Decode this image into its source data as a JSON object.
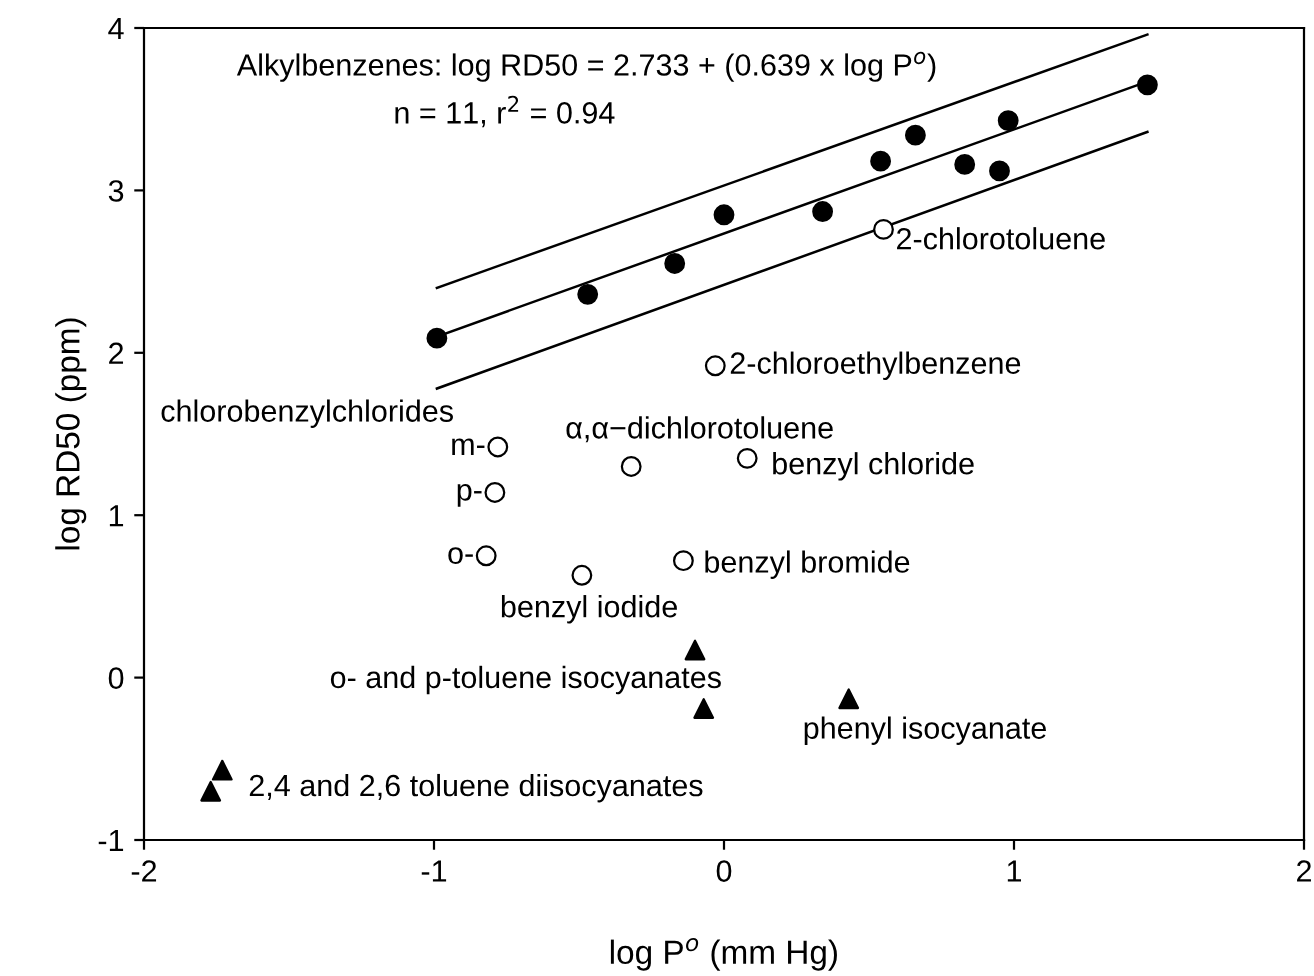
{
  "chart_data": {
    "type": "scatter",
    "xlabel": "log P$^{o}$ (mm Hg)",
    "ylabel": "log RD50 (ppm)",
    "xlim": [
      -2,
      2
    ],
    "ylim": [
      -1,
      4
    ],
    "xticks": [
      -2,
      -1,
      0,
      1,
      2
    ],
    "yticks": [
      -1,
      0,
      1,
      2,
      3,
      4
    ],
    "grid": false,
    "legend": false,
    "series": [
      {
        "type": "line",
        "color": "#000000",
        "marker": "none",
        "line_style": "solid",
        "x": [
          -0.99,
          1.46
        ],
        "values": [
          2.1,
          3.67
        ]
      },
      {
        "type": "line",
        "color": "#000000",
        "marker": "none",
        "line_style": "solid",
        "x": [
          -0.99,
          1.46
        ],
        "values": [
          2.4,
          3.96
        ]
      },
      {
        "type": "line",
        "color": "#000000",
        "marker": "none",
        "line_style": "solid",
        "x": [
          -0.99,
          1.46
        ],
        "values": [
          1.78,
          3.36
        ]
      },
      {
        "color": "#000000",
        "marker": "circle",
        "x": [
          -0.99,
          -0.47,
          -0.17,
          0.0,
          0.34,
          0.54,
          0.66,
          0.83,
          0.95,
          0.98,
          1.46
        ],
        "values": [
          2.09,
          2.36,
          2.55,
          2.85,
          2.87,
          3.18,
          3.34,
          3.16,
          3.12,
          3.43,
          3.65
        ]
      },
      {
        "color": "#ffffff",
        "marker": "circle",
        "x": [
          0.55,
          -0.03,
          -0.78,
          -0.32,
          0.08,
          -0.79,
          -0.82,
          -0.49,
          -0.14
        ],
        "values": [
          2.76,
          1.92,
          1.42,
          1.3,
          1.35,
          1.14,
          0.75,
          0.63,
          0.72
        ]
      },
      {
        "color": "#000000",
        "marker": "triangle",
        "x": [
          -0.1,
          -0.07,
          0.43,
          -1.73,
          -1.77
        ],
        "values": [
          0.17,
          -0.19,
          -0.13,
          -0.57,
          -0.7
        ]
      }
    ],
    "annotations": [
      "Alkylbenzenes: log RD50 = 2.733 + (0.639 x log P$^{o}$)",
      "n = 11, r$^{2}$ = 0.94",
      {
        "text": "2-chlorotoluene",
        "x": 0.55,
        "y": 2.76
      },
      {
        "text": "2-chloroethylbenzene",
        "x": -0.03,
        "y": 1.92
      },
      "chlorobenzylchlorides",
      {
        "text": "α,α−dichlorotoluene",
        "x": -0.32,
        "y": 1.3
      },
      {
        "text": "benzyl chloride",
        "x": 0.08,
        "y": 1.35
      },
      {
        "text": "m-",
        "x": -0.78,
        "y": 1.42
      },
      {
        "text": "p-",
        "x": -0.79,
        "y": 1.14
      },
      {
        "text": "o-",
        "x": -0.82,
        "y": 0.75
      },
      {
        "text": "benzyl bromide",
        "x": -0.14,
        "y": 0.72
      },
      {
        "text": "benzyl iodide",
        "x": -0.49,
        "y": 0.63
      },
      "o- and p-toluene isocyanates",
      {
        "text": "phenyl isocyanate",
        "x": 0.43,
        "y": -0.13
      },
      {
        "text": "2,4 and 2,6 toluene diisocyanates",
        "x": -1.73,
        "y": -0.57
      }
    ]
  }
}
